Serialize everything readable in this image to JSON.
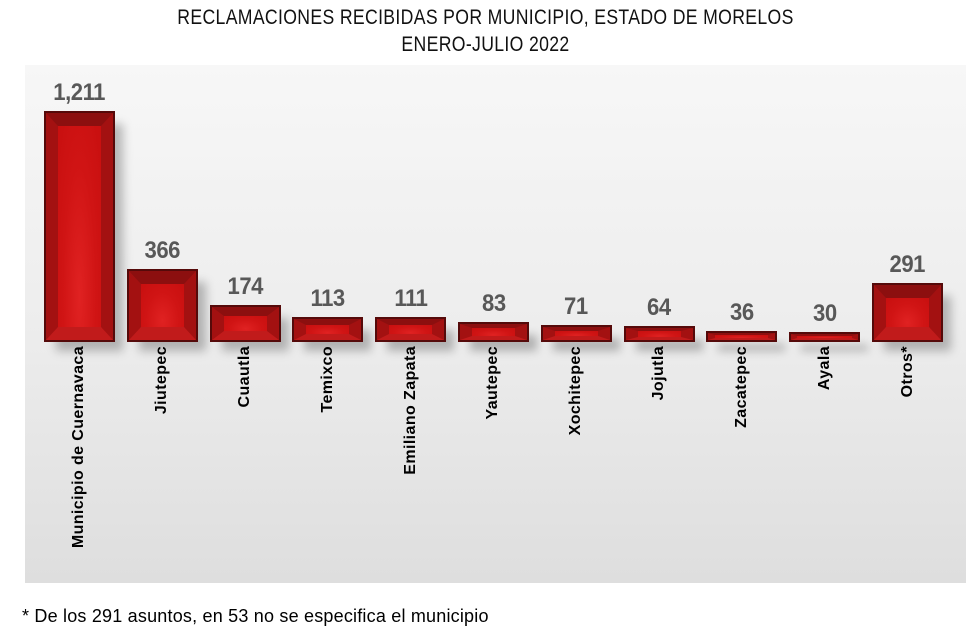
{
  "chart_data": {
    "type": "bar",
    "title": "RECLAMACIONES RECIBIDAS POR MUNICIPIO, ESTADO DE MORELOS",
    "subtitle": "ENERO-JULIO 2022",
    "categories": [
      "Municipio de Cuernavaca",
      "Jiutepec",
      "Cuautla",
      "Temixco",
      "Emiliano Zapata",
      "Yautepec",
      "Xochitepec",
      "Jojutla",
      "Zacatepec",
      "Ayala",
      "Otros*"
    ],
    "values": [
      1211,
      366,
      174,
      113,
      111,
      83,
      71,
      64,
      36,
      30,
      291
    ],
    "value_labels": [
      "1,211",
      "366",
      "174",
      "113",
      "111",
      "83",
      "71",
      "64",
      "36",
      "30",
      "291"
    ],
    "footnote": "* De los 291 asuntos, en 53 no se especifica el municipio",
    "xlabel": "",
    "ylabel": "",
    "ylim": [
      0,
      1300
    ],
    "y_axis_visible": false,
    "grid": false,
    "legend": "none",
    "colors": {
      "bar_center": "#d31616",
      "bar_bevel_top": "#8c0f0f",
      "bar_bevel_side": "#a31111",
      "bar_bevel_bottom": "#c11b1b",
      "bar_outline": "#550a0a",
      "value_label_text": "#585858",
      "category_label_text": "#000000",
      "panel_background_top": "#f7f7f7",
      "panel_background_bottom": "#dedede"
    }
  }
}
